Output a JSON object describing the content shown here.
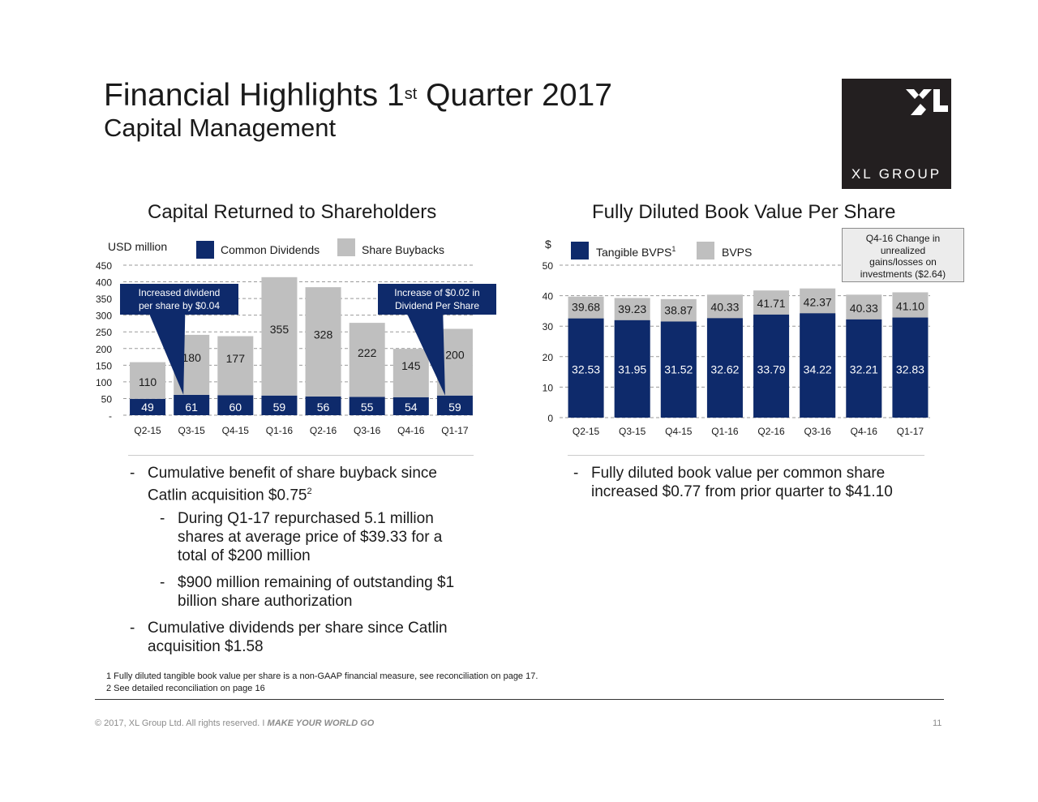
{
  "slide": {
    "title_pre": "Financial Highlights 1",
    "title_sup": "st",
    "title_post": " Quarter 2017",
    "subtitle": "Capital Management",
    "logo_text": "XL GROUP"
  },
  "colors": {
    "navy": "#0e2a6b",
    "gray": "#bfbfbf",
    "callout_blue": "#0e2a6b"
  },
  "chart_data": [
    {
      "type": "bar",
      "stacked": true,
      "title": "Capital Returned to Shareholders",
      "unit_label": "USD million",
      "categories": [
        "Q2-15",
        "Q3-15",
        "Q4-15",
        "Q1-16",
        "Q2-16",
        "Q3-16",
        "Q4-16",
        "Q1-17"
      ],
      "series": [
        {
          "name": "Common Dividends",
          "color": "#0e2a6b",
          "values": [
            49,
            61,
            60,
            59,
            56,
            55,
            54,
            59
          ]
        },
        {
          "name": "Share Buybacks",
          "color": "#bfbfbf",
          "values": [
            110,
            180,
            177,
            355,
            328,
            222,
            145,
            200
          ]
        }
      ],
      "y_ticks": [
        "-",
        "50",
        "100",
        "150",
        "200",
        "250",
        "300",
        "350",
        "400",
        "450"
      ],
      "ylim": [
        0,
        450
      ],
      "grid": true,
      "annotations": [
        {
          "line1": "Increased dividend",
          "line2": "per share by $0.04"
        },
        {
          "line1": "Increase of $0.02 in",
          "line2": "Dividend Per Share"
        }
      ]
    },
    {
      "type": "bar",
      "overlapped": true,
      "title": "Fully Diluted Book Value Per Share",
      "unit_label": "$",
      "categories": [
        "Q2-15",
        "Q3-15",
        "Q4-15",
        "Q1-16",
        "Q2-16",
        "Q3-16",
        "Q4-16",
        "Q1-17"
      ],
      "series": [
        {
          "name": "Tangible BVPS",
          "name_sup": "1",
          "color": "#0e2a6b",
          "values": [
            32.53,
            31.95,
            31.52,
            32.62,
            33.79,
            34.22,
            32.21,
            32.83
          ]
        },
        {
          "name": "BVPS",
          "color": "#bfbfbf",
          "values": [
            39.68,
            39.23,
            38.87,
            40.33,
            41.71,
            42.37,
            40.33,
            41.1
          ]
        }
      ],
      "value_labels_tangible": [
        "32.53",
        "31.95",
        "31.52",
        "32.62",
        "33.79",
        "34.22",
        "32.21",
        "32.83"
      ],
      "value_labels_bvps": [
        "39.68",
        "39.23",
        "38.87",
        "40.33",
        "41.71",
        "42.37",
        "40.33",
        "41.10"
      ],
      "y_ticks": [
        "0",
        "10",
        "20",
        "30",
        "40",
        "50"
      ],
      "ylim": [
        0,
        50
      ],
      "grid": true,
      "note": [
        "Q4-16 Change in",
        "unrealized",
        "gains/losses on",
        "investments ($2.64)"
      ]
    }
  ],
  "left_bullets": {
    "b1_line1": "Cumulative benefit of share buyback since",
    "b1_line2": "Catlin acquisition $0.75",
    "b1_sup": "2",
    "s1_line1": "During Q1-17 repurchased 5.1 million",
    "s1_line2": "shares at average price of $39.33 for a",
    "s1_line3": "total of $200 million",
    "s2_line1": "$900 million remaining of outstanding $1",
    "s2_line2": "billion share authorization",
    "b2_line1": "Cumulative dividends per share since Catlin",
    "b2_line2": "acquisition $1.58",
    "dash": "-"
  },
  "right_bullets": {
    "b1_line1": "Fully diluted book value per common share",
    "b1_line2": "increased $0.77 from prior quarter to $41.10",
    "dash": "-"
  },
  "footnotes": {
    "f1": "1 Fully diluted tangible book value per share is a non-GAAP financial measure, see reconciliation on page 17.",
    "f2": "2 See detailed reconciliation on page 16"
  },
  "footer": {
    "copyright": "© 2017, XL Group Ltd. All rights reserved. I ",
    "tagline": "MAKE YOUR WORLD GO",
    "page": "11"
  }
}
